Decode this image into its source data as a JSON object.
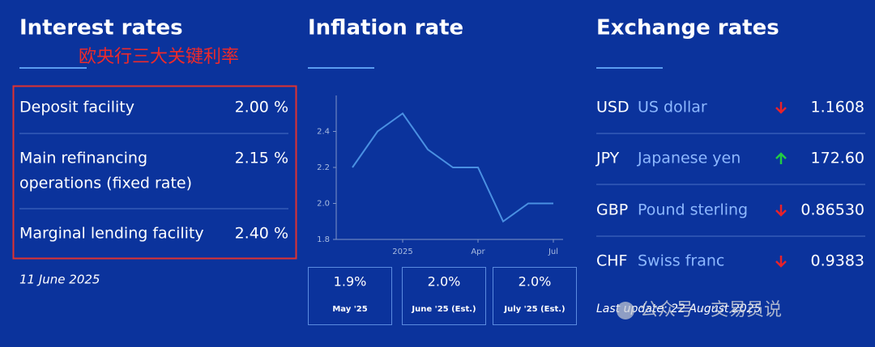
{
  "interest": {
    "title": "Interest rates",
    "annotation": "欧央行三大关键利率",
    "rows": [
      {
        "label": "Deposit facility",
        "value": "2.00 %"
      },
      {
        "label": [
          "Main refinancing",
          "operations (fixed rate)"
        ],
        "value": "2.15 %"
      },
      {
        "label": "Marginal lending facility",
        "value": "2.40 %"
      }
    ],
    "date": "11 June 2025"
  },
  "inflation": {
    "title": "Inflation rate",
    "boxes": [
      {
        "value": "1.9%",
        "label": "May '25"
      },
      {
        "value": "2.0%",
        "label": "June '25 (Est.)"
      },
      {
        "value": "2.0%",
        "label": "July '25 (Est.)"
      }
    ]
  },
  "chart_data": {
    "type": "line",
    "categories": [
      null,
      null,
      "2025",
      null,
      null,
      "Apr",
      null,
      null,
      "Jul"
    ],
    "series": [
      {
        "color": "#4a90e2",
        "values": [
          2.2,
          2.4,
          2.5,
          2.3,
          2.2,
          2.2,
          1.9,
          2.0,
          2.0
        ]
      }
    ],
    "ylim": [
      1.8,
      2.6
    ],
    "yticks": [
      1.8,
      {
        "value": 2,
        "label": "2.0"
      },
      2.2,
      2.4
    ]
  },
  "exchange": {
    "title": "Exchange rates",
    "rows": [
      {
        "code": "USD",
        "name": "US dollar",
        "value": "1.1608"
      },
      {
        "code": "JPY",
        "name": "Japanese yen",
        "value": "172.60"
      },
      {
        "code": "GBP",
        "name": "Pound sterling",
        "value": "0.86530"
      },
      {
        "code": "CHF",
        "name": "Swiss franc",
        "value": "0.9383"
      }
    ],
    "update": "Last update: 22 August 2025"
  },
  "watermark": "公众号 · 交易员说"
}
